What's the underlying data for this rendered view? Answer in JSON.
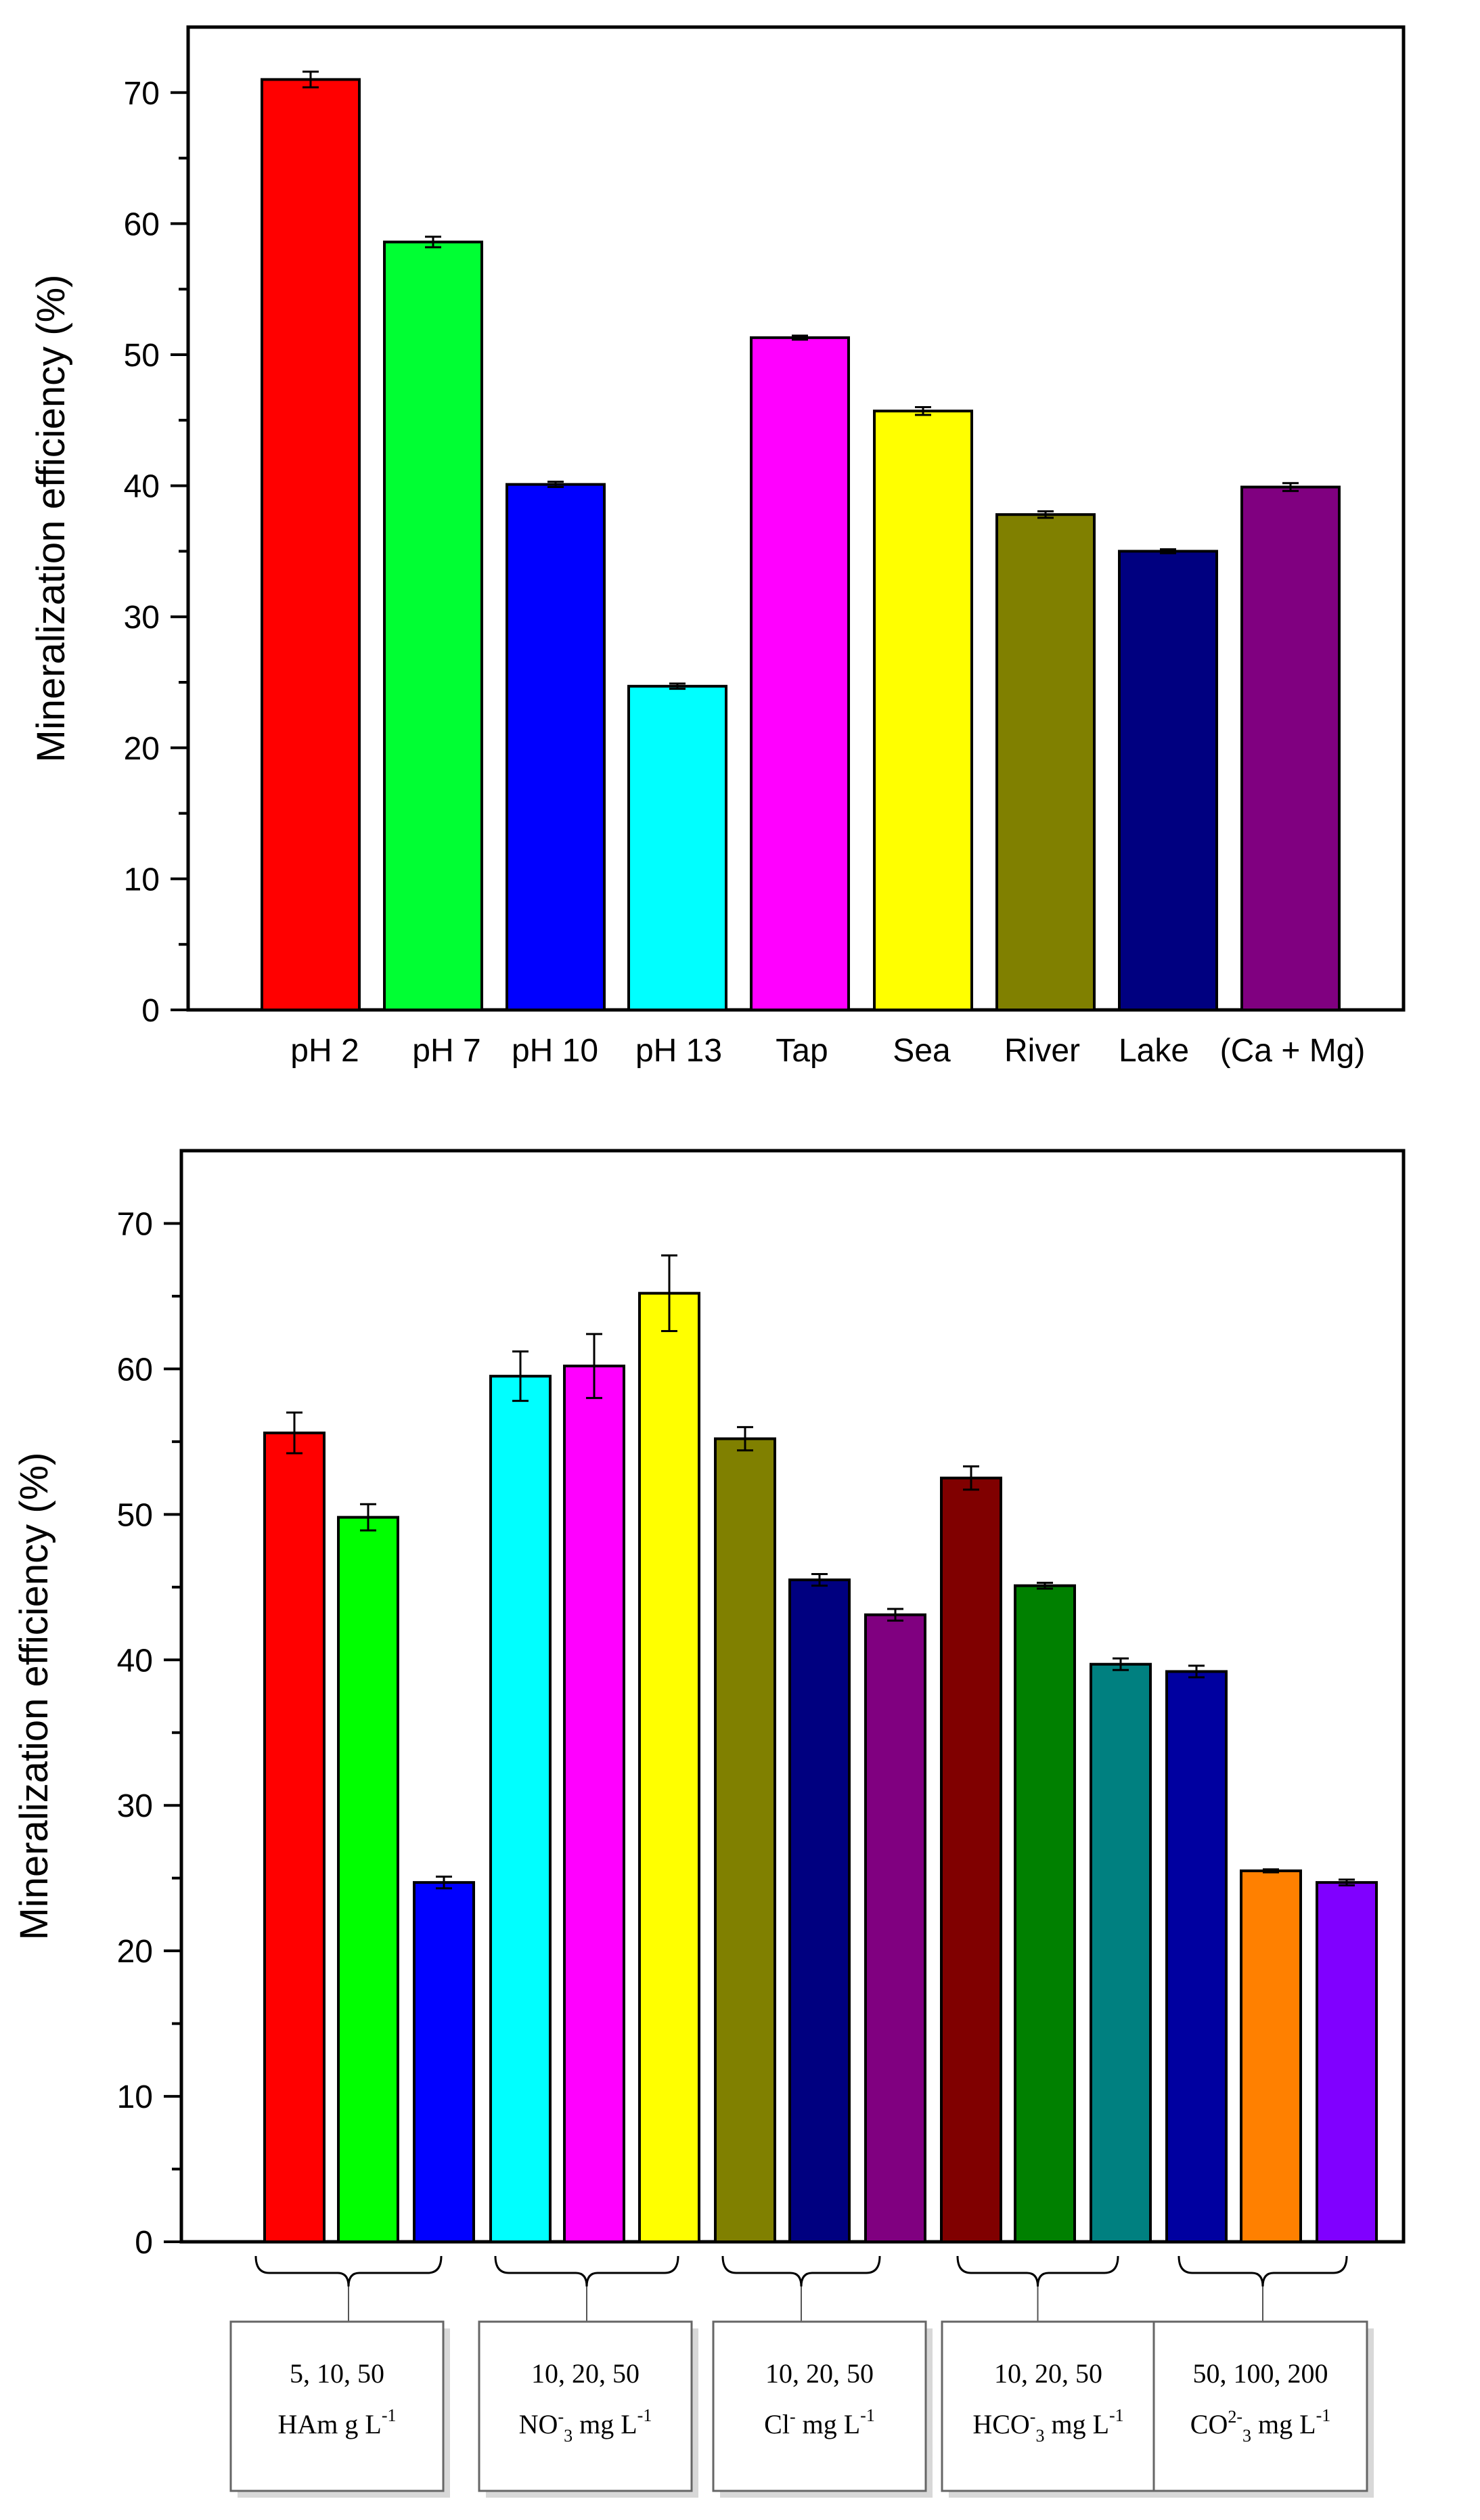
{
  "chart_data": [
    {
      "type": "bar",
      "ylabel": "Mineralization efficiency (%)",
      "ylim": [
        0,
        75
      ],
      "yticks": [
        0,
        10,
        20,
        30,
        40,
        50,
        60,
        70
      ],
      "categories": [
        "pH 2",
        "pH 7",
        "pH 10",
        "pH 13",
        "Tap",
        "Sea",
        "River",
        "Lake",
        "(Ca + Mg)"
      ],
      "values": [
        71.0,
        58.6,
        40.1,
        24.7,
        51.3,
        45.7,
        37.8,
        35.0,
        39.9
      ],
      "errors": [
        0.6,
        0.4,
        0.2,
        0.2,
        0.15,
        0.3,
        0.25,
        0.15,
        0.3
      ],
      "colors": [
        "#ff0000",
        "#00ff33",
        "#0000ff",
        "#00ffff",
        "#ff00ff",
        "#ffff00",
        "#808000",
        "#000080",
        "#800080"
      ]
    },
    {
      "type": "bar",
      "ylabel": "Mineralization efficiency (%)",
      "ylim": [
        0,
        75
      ],
      "yticks": [
        0,
        10,
        20,
        30,
        40,
        50,
        60,
        70
      ],
      "values": [
        55.6,
        49.8,
        24.7,
        59.5,
        60.2,
        65.2,
        55.2,
        45.5,
        43.1,
        52.5,
        45.1,
        39.7,
        39.2,
        25.5,
        24.7
      ],
      "errors": [
        1.4,
        0.9,
        0.4,
        1.7,
        2.2,
        2.6,
        0.8,
        0.4,
        0.4,
        0.8,
        0.2,
        0.4,
        0.4,
        0.1,
        0.2
      ],
      "colors": [
        "#ff0000",
        "#00ff00",
        "#0000ff",
        "#00ffff",
        "#ff00ff",
        "#ffff00",
        "#808000",
        "#000080",
        "#800080",
        "#800000",
        "#008000",
        "#008080",
        "#0000a0",
        "#ff8000",
        "#8000ff"
      ],
      "groups": [
        {
          "concentrations": "5, 10, 50",
          "label": "HA",
          "unit": "m g L",
          "unit_sup": "-1"
        },
        {
          "concentrations": "10, 20, 50",
          "label": "NO",
          "sub": "3",
          "sup": "-",
          "unit": " mg L",
          "unit_sup": "-1"
        },
        {
          "concentrations": "10, 20, 50",
          "label": "Cl",
          "sup": "-",
          "unit": " mg L",
          "unit_sup": "-1"
        },
        {
          "concentrations": "10, 20, 50",
          "label": "HCO",
          "sub": "3",
          "sup": "-",
          "unit": " mg L",
          "unit_sup": "-1"
        },
        {
          "concentrations": "50, 100, 200",
          "label": "CO",
          "sub": "3",
          "sup": "2-",
          "unit": " mg L",
          "unit_sup": "-1"
        }
      ]
    }
  ]
}
